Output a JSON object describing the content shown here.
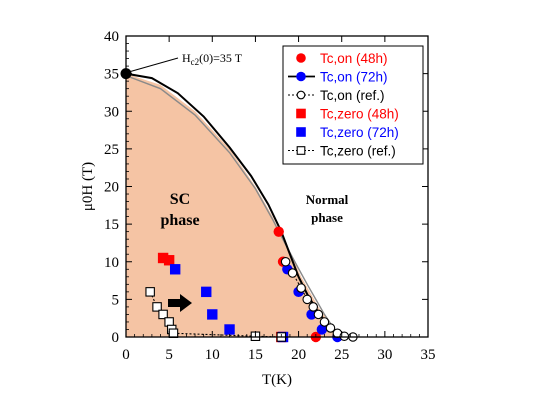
{
  "chart_data": {
    "type": "scatter",
    "xlabel": "T(K)",
    "ylabel": "μ0H (T)",
    "xlim": [
      0,
      35
    ],
    "ylim": [
      0,
      40
    ],
    "xticks": [
      0,
      5,
      10,
      15,
      20,
      25,
      30,
      35
    ],
    "yticks": [
      0,
      5,
      10,
      15,
      20,
      25,
      30,
      35,
      40
    ],
    "grid": false,
    "legend_position": "top-right",
    "colors": {
      "red": "#ff0000",
      "blue": "#0000ff",
      "black": "#000000",
      "sc_fill": "#f5c4a4"
    },
    "regions": [
      {
        "label_line1": "SC",
        "label_line2": "phase"
      },
      {
        "label_line1": "Normal",
        "label_line2": "phase"
      }
    ],
    "annotation": {
      "text_main": "H",
      "text_sub": "c2",
      "text_rest": "(0)=35 T",
      "point": [
        0,
        35
      ]
    },
    "series": [
      {
        "name": "Tc,on (48h)",
        "marker": "filled-circle",
        "color": "#ff0000",
        "line": false,
        "points": [
          [
            17.7,
            14
          ],
          [
            18.2,
            10
          ],
          [
            22,
            0
          ]
        ]
      },
      {
        "name": "Tc,on (72h)",
        "marker": "filled-circle",
        "color": "#0000ff",
        "line": true,
        "line_style": "solid",
        "points": [
          [
            0,
            35
          ],
          [
            18.7,
            9
          ],
          [
            20,
            6
          ],
          [
            21.5,
            3
          ],
          [
            22.7,
            1
          ],
          [
            24.5,
            0
          ]
        ]
      },
      {
        "name": "Tc,on (ref.)",
        "marker": "open-circle",
        "color": "#000000",
        "line": true,
        "line_style": "dotted",
        "points": [
          [
            18.5,
            10
          ],
          [
            19.3,
            8.5
          ],
          [
            20.3,
            6.5
          ],
          [
            21,
            5
          ],
          [
            21.7,
            4
          ],
          [
            22.3,
            3
          ],
          [
            23,
            2
          ],
          [
            23.7,
            1.2
          ],
          [
            24.5,
            0.5
          ],
          [
            25.3,
            0.1
          ],
          [
            26.3,
            0
          ]
        ]
      },
      {
        "name": "Tc,zero (48h)",
        "marker": "filled-square",
        "color": "#ff0000",
        "line": false,
        "points": [
          [
            4.3,
            10.5
          ],
          [
            5,
            10.2
          ],
          [
            18,
            0
          ]
        ]
      },
      {
        "name": "Tc,zero (72h)",
        "marker": "filled-square",
        "color": "#0000ff",
        "line": false,
        "points": [
          [
            5.7,
            9
          ],
          [
            9.3,
            6
          ],
          [
            10,
            3
          ],
          [
            12,
            1
          ],
          [
            18.2,
            0
          ]
        ]
      },
      {
        "name": "Tc,zero (ref.)",
        "marker": "open-square",
        "color": "#000000",
        "line": true,
        "line_style": "dotted",
        "points": [
          [
            2.8,
            6
          ],
          [
            3.6,
            4
          ],
          [
            4.3,
            3
          ],
          [
            5,
            2
          ],
          [
            5.3,
            1
          ],
          [
            5.5,
            0.5
          ],
          [
            15,
            0.1
          ],
          [
            18,
            0
          ]
        ]
      }
    ]
  }
}
